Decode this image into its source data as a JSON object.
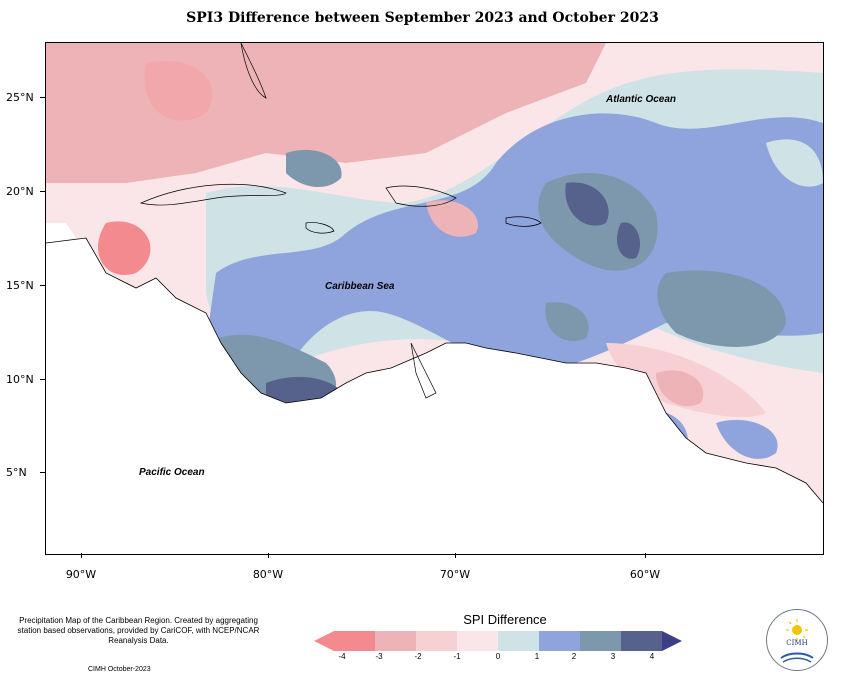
{
  "title": "SPI3 Difference between September 2023 and October 2023",
  "axes": {
    "y_labels": [
      "25°N",
      "20°N",
      "15°N",
      "10°N",
      "5°N"
    ],
    "x_labels": [
      "90°W",
      "80°W",
      "70°W",
      "60°W"
    ]
  },
  "places": {
    "atlantic": "Atlantic Ocean",
    "caribbean": "Caribbean Sea",
    "pacific": "Pacific Ocean"
  },
  "legend": {
    "title": "SPI Difference",
    "ticks": [
      "-4",
      "-3",
      "-2",
      "-1",
      "0",
      "1",
      "2",
      "3",
      "4"
    ],
    "colors": [
      "#f28a8f",
      "#eeb3b6",
      "#f7d0d4",
      "#fae6e8",
      "#cfe2e6",
      "#8fa4dc",
      "#7d97ad",
      "#56628c"
    ]
  },
  "footer": {
    "note": "Precipitation Map of the Caribbean Region. Created by aggregating station based observations, provided by CariCOF, with NCEP/NCAR Reanalysis Data.",
    "credit": "CIMH October-2023",
    "logo_text": "CIMH"
  }
}
